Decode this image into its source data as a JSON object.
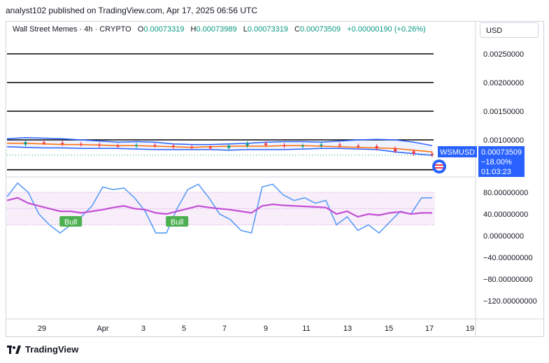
{
  "header": {
    "publisher_line": "analyst102 published on TradingView.com, Apr 17, 2025 06:56 UTC"
  },
  "legend": {
    "symbol": "Wall Street Memes · 4h · CRYPTO",
    "o_label": "O",
    "o_value": "0.00073319",
    "h_label": "H",
    "h_value": "0.00073989",
    "l_label": "L",
    "l_value": "0.00073319",
    "c_label": "C",
    "c_value": "0.00073509",
    "change": "+0.00000190 (+0.26%)"
  },
  "currency": "USD",
  "price_tag": {
    "ticker": "WSMUSD",
    "price": "0.00073509",
    "change_pct": "−18.00%",
    "countdown": "01:03:23"
  },
  "footer": {
    "brand": "TradingView"
  },
  "colors": {
    "up": "#089981",
    "down": "#f23645",
    "bb": "#2962ff",
    "ma": "#ff6d00",
    "stoch_k": "#5b9cf6",
    "stoch_d": "#c44fd6",
    "tag_bg": "#2962ff",
    "bull": "#4caf50"
  },
  "chart_data": [
    {
      "type": "line",
      "panel": "price",
      "y_ticks": [
        0.0025,
        0.002,
        0.0015,
        0.001
      ],
      "y_tick_labels": [
        "0.00250000",
        "0.00200000",
        "0.00150000",
        "0.00100000"
      ],
      "horizontal_levels": [
        0.0025,
        0.002,
        0.0015,
        0.001,
        0.00048
      ],
      "x_tick_labels": [
        "29",
        "Apr",
        "3",
        "5",
        "7",
        "9",
        "11",
        "13",
        "15",
        "17",
        "19"
      ],
      "bollinger_upper": [
        0.00102,
        0.00104,
        0.00103,
        0.00102,
        0.001,
        0.00098,
        0.00096,
        0.00097,
        0.00096,
        0.00093,
        0.00092,
        0.00092,
        0.00093,
        0.00094,
        0.00096,
        0.00097,
        0.00097,
        0.00096,
        0.00098,
        0.001,
        0.00101,
        0.001,
        0.00096,
        0.0009
      ],
      "bollinger_mid": [
        0.00094,
        0.00094,
        0.00093,
        0.00092,
        0.00092,
        0.00091,
        0.0009,
        0.0009,
        0.00089,
        0.00088,
        0.00087,
        0.00088,
        0.00089,
        0.00089,
        0.00089,
        0.0009,
        0.0009,
        0.00089,
        0.00088,
        0.00087,
        0.00086,
        0.00085,
        0.00082,
        0.00079
      ],
      "bollinger_lower": [
        0.00088,
        0.00087,
        0.00086,
        0.00086,
        0.00085,
        0.00085,
        0.00085,
        0.00084,
        0.00083,
        0.00083,
        0.00083,
        0.00083,
        0.00082,
        0.00083,
        0.00083,
        0.00083,
        0.00084,
        0.00085,
        0.00085,
        0.00084,
        0.00083,
        0.00079,
        0.00076,
        0.00073
      ],
      "close": [
        0.00092,
        0.00096,
        0.00095,
        0.00093,
        0.00092,
        0.0009,
        0.00089,
        0.00091,
        0.0009,
        0.00088,
        0.00087,
        0.00086,
        0.0009,
        0.00094,
        0.00091,
        0.00089,
        0.0009,
        0.00092,
        0.0009,
        0.00089,
        0.00085,
        0.0008,
        0.00076,
        0.000735
      ]
    },
    {
      "type": "line",
      "panel": "stochastic",
      "y_ticks": [
        80,
        40,
        0,
        -40,
        -80,
        -120
      ],
      "y_tick_labels": [
        "80.00000000",
        "40.00000000",
        "0.00000000",
        "−40.00000000",
        "−80.00000000",
        "−120.00000000"
      ],
      "band": [
        20,
        80
      ],
      "mid": 50,
      "k": [
        72,
        97,
        80,
        40,
        20,
        5,
        20,
        35,
        55,
        90,
        85,
        88,
        70,
        45,
        5,
        5,
        50,
        85,
        95,
        70,
        40,
        30,
        10,
        5,
        90,
        95,
        75,
        65,
        70,
        60,
        65,
        20,
        35,
        10,
        20,
        5,
        25,
        45,
        40,
        70,
        70
      ],
      "d": [
        65,
        70,
        60,
        55,
        50,
        45,
        45,
        42,
        45,
        48,
        52,
        55,
        50,
        48,
        42,
        40,
        45,
        50,
        55,
        52,
        50,
        48,
        45,
        42,
        55,
        58,
        56,
        55,
        54,
        53,
        52,
        40,
        45,
        35,
        40,
        38,
        42,
        44,
        40,
        42,
        42
      ],
      "signals": [
        {
          "label": "Bull",
          "index": 6
        },
        {
          "label": "Bull",
          "index": 16
        }
      ]
    }
  ]
}
